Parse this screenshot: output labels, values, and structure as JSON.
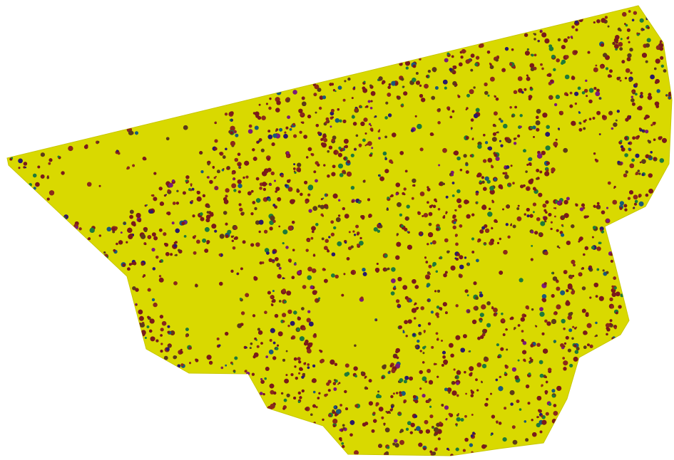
{
  "map": {
    "background_color": "#ffffff",
    "fill_color": "#d9d900",
    "edge_color": "#c8c800",
    "marker_colors": [
      "#7a1a1a",
      "#8b2a1a",
      "#5c3a1a",
      "#1e7a3a",
      "#2a1a6b",
      "#7a1a7a",
      "#1a5a7a"
    ],
    "marker_color_weights": [
      0.42,
      0.2,
      0.12,
      0.11,
      0.06,
      0.05,
      0.04
    ],
    "marker_icon": "tree-dot-icon"
  }
}
